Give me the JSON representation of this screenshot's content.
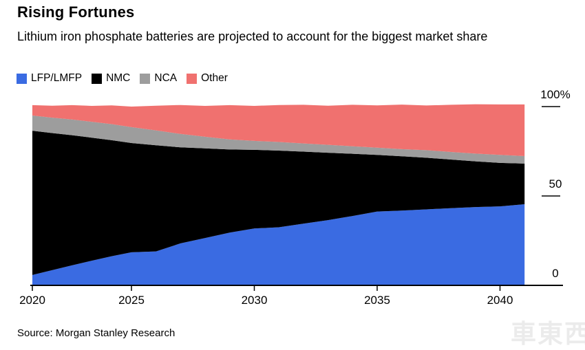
{
  "header": {
    "title": "Rising Fortunes",
    "subtitle": "Lithium iron phosphate batteries are projected to account for the biggest market share"
  },
  "legend": [
    {
      "label": "LFP/LMFP",
      "color": "#3A6BE2"
    },
    {
      "label": "NMC",
      "color": "#000000"
    },
    {
      "label": "NCA",
      "color": "#9D9D9D"
    },
    {
      "label": "Other",
      "color": "#F0716F"
    }
  ],
  "source": "Source: Morgan Stanley Research",
  "watermark": "車東西",
  "chart_data": {
    "type": "area",
    "stacked": true,
    "title": "Rising Fortunes",
    "subtitle": "Lithium iron phosphate batteries are projected to account for the biggest market share",
    "unit": "%",
    "x": [
      2020,
      2021,
      2022,
      2023,
      2024,
      2025,
      2026,
      2027,
      2028,
      2029,
      2030,
      2031,
      2032,
      2033,
      2034,
      2035,
      2036,
      2037,
      2038,
      2039,
      2040,
      2041
    ],
    "series": [
      {
        "name": "LFP/LMFP",
        "color": "#3A6BE2",
        "values": [
          5.8,
          8.5,
          11.2,
          13.8,
          16.3,
          18.5,
          19.0,
          23.5,
          26.5,
          29.5,
          31.8,
          32.5,
          34.5,
          36.5,
          38.8,
          41.3,
          41.8,
          42.5,
          43.2,
          43.8,
          44.2,
          45.4
        ]
      },
      {
        "name": "NMC",
        "color": "#000000",
        "values": [
          80.7,
          76.7,
          72.8,
          68.8,
          64.9,
          61.1,
          59.4,
          53.7,
          50.1,
          46.5,
          44.0,
          42.9,
          40.3,
          37.7,
          34.8,
          31.7,
          30.4,
          28.9,
          27.2,
          25.6,
          24.3,
          22.7
        ]
      },
      {
        "name": "NCA",
        "color": "#9D9D9D",
        "values": [
          8.5,
          8.6,
          8.8,
          8.9,
          9.0,
          8.9,
          8.3,
          7.5,
          6.5,
          5.6,
          5.0,
          4.8,
          4.6,
          4.4,
          4.2,
          4.0,
          4.0,
          4.2,
          4.2,
          4.3,
          4.5,
          4.2
        ]
      },
      {
        "name": "Other",
        "color": "#F0716F",
        "values": [
          5.8,
          6.7,
          8.0,
          8.9,
          10.5,
          11.5,
          13.8,
          16.2,
          17.3,
          19.2,
          19.6,
          20.7,
          21.6,
          21.9,
          23.2,
          23.7,
          24.9,
          25.0,
          26.4,
          27.6,
          28.2,
          28.9
        ]
      }
    ],
    "xticks": [
      2020,
      2025,
      2030,
      2035,
      2040
    ],
    "yticks": [
      {
        "label": "100%",
        "value": 100
      },
      {
        "label": "50",
        "value": 50
      },
      {
        "label": "0",
        "value": 0
      }
    ],
    "ylim": [
      0,
      100
    ],
    "grid": false,
    "legend_position": "top-left",
    "axis_color": "#000000"
  }
}
